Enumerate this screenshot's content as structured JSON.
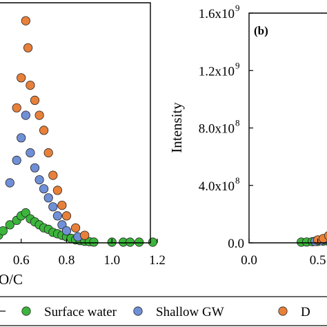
{
  "chart_data": [
    {
      "type": "scatter",
      "panel_label": "",
      "xlabel": "O/C",
      "ylabel": "",
      "xlim": [
        0.4,
        1.2
      ],
      "ylim": [
        0,
        1600000000.0
      ],
      "x_ticks": [
        "0.6",
        "0.8",
        "1.0",
        "1.2"
      ],
      "series": [
        {
          "name": "Surface water",
          "color": "#3cb53c",
          "points": [
            [
              0.5,
              50000000.0
            ],
            [
              0.52,
              80000000.0
            ],
            [
              0.55,
              120000000.0
            ],
            [
              0.58,
              150000000.0
            ],
            [
              0.6,
              180000000.0
            ],
            [
              0.62,
              200000000.0
            ],
            [
              0.64,
              160000000.0
            ],
            [
              0.66,
              140000000.0
            ],
            [
              0.68,
              120000000.0
            ],
            [
              0.7,
              100000000.0
            ],
            [
              0.72,
              90000000.0
            ],
            [
              0.74,
              70000000.0
            ],
            [
              0.76,
              60000000.0
            ],
            [
              0.78,
              50000000.0
            ],
            [
              0.8,
              40000000.0
            ],
            [
              0.82,
              30000000.0
            ],
            [
              0.84,
              20000000.0
            ],
            [
              0.86,
              15000000.0
            ],
            [
              0.88,
              10000000.0
            ],
            [
              0.9,
              8000000.0
            ],
            [
              0.92,
              5000000.0
            ],
            [
              1.0,
              4000000.0
            ],
            [
              1.05,
              3000000.0
            ],
            [
              1.08,
              2000000.0
            ],
            [
              1.12,
              2000000.0
            ],
            [
              1.18,
              1000000.0
            ]
          ]
        },
        {
          "name": "Shallow GW",
          "color": "#6f8fd6",
          "points": [
            [
              0.55,
              400000000.0
            ],
            [
              0.58,
              550000000.0
            ],
            [
              0.6,
              700000000.0
            ],
            [
              0.62,
              850000000.0
            ],
            [
              0.64,
              600000000.0
            ],
            [
              0.66,
              500000000.0
            ],
            [
              0.68,
              420000000.0
            ],
            [
              0.7,
              360000000.0
            ],
            [
              0.72,
              300000000.0
            ],
            [
              0.74,
              240000000.0
            ],
            [
              0.76,
              180000000.0
            ],
            [
              0.78,
              120000000.0
            ],
            [
              0.8,
              80000000.0
            ],
            [
              0.85,
              40000000.0
            ]
          ]
        },
        {
          "name": "D",
          "color": "#e8803a",
          "points": [
            [
              0.58,
              900000000.0
            ],
            [
              0.6,
              1100000000.0
            ],
            [
              0.62,
              1480000000.0
            ],
            [
              0.63,
              1300000000.0
            ],
            [
              0.64,
              1050000000.0
            ],
            [
              0.66,
              950000000.0
            ],
            [
              0.68,
              850000000.0
            ],
            [
              0.7,
              750000000.0
            ],
            [
              0.72,
              600000000.0
            ],
            [
              0.74,
              450000000.0
            ],
            [
              0.76,
              350000000.0
            ],
            [
              0.78,
              250000000.0
            ],
            [
              0.8,
              180000000.0
            ],
            [
              0.84,
              100000000.0
            ],
            [
              0.88,
              50000000.0
            ]
          ]
        }
      ]
    },
    {
      "type": "scatter",
      "panel_label": "(b)",
      "xlabel": "",
      "ylabel": "Intensity",
      "xlim": [
        0.0,
        1.2
      ],
      "ylim": [
        0,
        1600000000.0
      ],
      "x_ticks": [
        "0.0",
        "0.5"
      ],
      "y_ticks": [
        "0.0",
        "4.0x10",
        "8.0x10",
        "1.2x10",
        "1.6x10"
      ],
      "y_tick_exponent": "9",
      "y_tick_exponents": [
        "",
        "8",
        "8",
        "9",
        "9"
      ],
      "series": [
        {
          "name": "Surface water",
          "color": "#3cb53c",
          "points": [
            [
              0.38,
              4000000.0
            ],
            [
              0.42,
              6000000.0
            ],
            [
              0.46,
              8000000.0
            ],
            [
              0.5,
              10000000.0
            ],
            [
              0.54,
              12000000.0
            ],
            [
              0.58,
              10000000.0
            ],
            [
              0.62,
              8000000.0
            ]
          ]
        },
        {
          "name": "Shallow GW",
          "color": "#6f8fd6",
          "points": [
            [
              0.48,
              10000000.0
            ],
            [
              0.52,
              15000000.0
            ],
            [
              0.56,
              20000000.0
            ],
            [
              0.6,
              18000000.0
            ]
          ]
        },
        {
          "name": "D",
          "color": "#e8803a",
          "points": [
            [
              0.5,
              20000000.0
            ],
            [
              0.54,
              30000000.0
            ],
            [
              0.58,
              50000000.0
            ],
            [
              0.62,
              40000000.0
            ],
            [
              0.66,
              30000000.0
            ]
          ]
        }
      ]
    }
  ],
  "legend": {
    "items": [
      {
        "label": "Surface water",
        "color": "#3cb53c"
      },
      {
        "label": "Shallow GW",
        "color": "#6f8fd6"
      },
      {
        "label": "D",
        "color": "#e8803a"
      }
    ]
  }
}
